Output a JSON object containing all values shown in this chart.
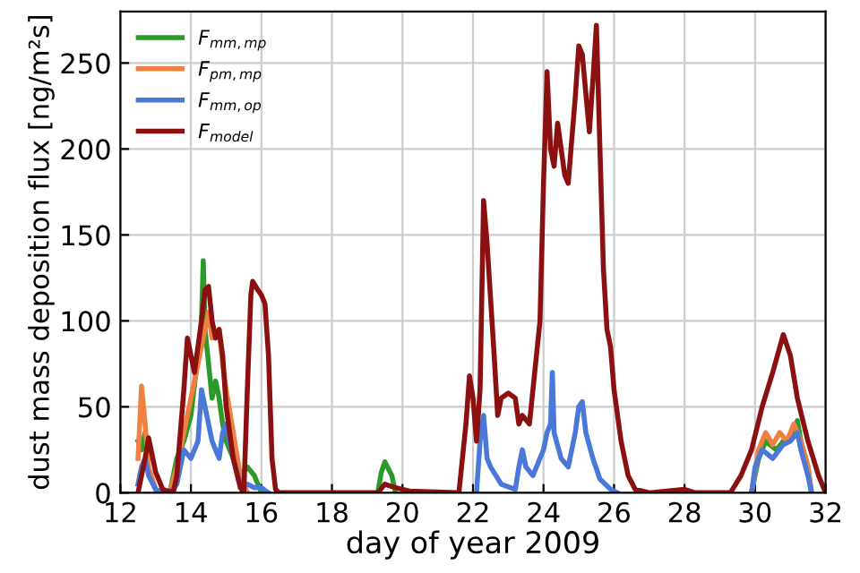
{
  "chart_data": {
    "type": "line",
    "xlabel": "day of year 2009",
    "ylabel": "dust mass deposition flux [ng/m²s]",
    "xlim": [
      12,
      32
    ],
    "ylim": [
      0,
      280
    ],
    "xticks": [
      12,
      14,
      16,
      18,
      20,
      22,
      24,
      26,
      28,
      30,
      32
    ],
    "yticks": [
      0,
      50,
      100,
      150,
      200,
      250
    ],
    "grid": true,
    "legend": "top left",
    "marker": "none",
    "line_style": "solid",
    "series": [
      {
        "name": "F$_{mm,mp}$",
        "color": "#2a9a2a",
        "x": [
          12.5,
          12.6,
          12.7,
          12.8,
          13.0,
          13.4,
          13.6,
          13.8,
          14.0,
          14.2,
          14.3,
          14.35,
          14.4,
          14.6,
          14.7,
          14.8,
          14.9,
          15.0,
          15.2,
          15.4,
          15.6,
          15.8,
          16.0,
          17.0,
          19.3,
          19.4,
          19.5,
          19.7,
          19.8,
          25.0,
          29.9,
          30.1,
          30.3,
          30.6,
          30.8,
          31.0,
          31.2,
          31.3,
          31.5,
          31.6
        ],
        "values": [
          30,
          25,
          35,
          12,
          2,
          0,
          20,
          30,
          45,
          80,
          100,
          135,
          95,
          55,
          65,
          55,
          40,
          30,
          20,
          10,
          15,
          10,
          0,
          null,
          0,
          12,
          18,
          10,
          0,
          null,
          0,
          20,
          30,
          25,
          30,
          32,
          42,
          30,
          15,
          0
        ]
      },
      {
        "name": "F$_{pm,mp}$",
        "color": "#f08040",
        "x": [
          12.5,
          12.6,
          12.7,
          12.8,
          13.0,
          13.4,
          13.6,
          13.8,
          14.0,
          14.2,
          14.4,
          14.5,
          14.6,
          14.8,
          14.9,
          15.0,
          15.2,
          15.4,
          15.6,
          20.0,
          29.9,
          30.1,
          30.3,
          30.5,
          30.7,
          30.9,
          31.1,
          31.3,
          31.5,
          31.6
        ],
        "values": [
          20,
          62,
          40,
          15,
          2,
          0,
          15,
          35,
          55,
          75,
          95,
          105,
          90,
          95,
          75,
          60,
          35,
          10,
          0,
          null,
          0,
          25,
          35,
          28,
          35,
          30,
          40,
          30,
          15,
          0
        ]
      },
      {
        "name": "F$_{mm,op}$",
        "color": "#4a78d8",
        "x": [
          12.5,
          12.6,
          12.7,
          12.8,
          13.0,
          13.4,
          13.6,
          13.8,
          14.0,
          14.2,
          14.3,
          14.4,
          14.5,
          14.6,
          14.8,
          14.9,
          15.0,
          15.1,
          15.2,
          15.4,
          15.6,
          15.8,
          16.0,
          16.2,
          17.0,
          22.1,
          22.2,
          22.3,
          22.4,
          22.5,
          22.8,
          23.2,
          23.3,
          23.4,
          23.5,
          23.7,
          23.9,
          24.0,
          24.1,
          24.2,
          24.25,
          24.3,
          24.5,
          24.7,
          24.9,
          25.0,
          25.1,
          25.2,
          25.4,
          25.6,
          25.9,
          26.1,
          28.0,
          29.9,
          30.0,
          30.2,
          30.5,
          30.8,
          31.0,
          31.2,
          31.3,
          31.5,
          31.6
        ],
        "values": [
          5,
          15,
          20,
          10,
          2,
          0,
          5,
          25,
          20,
          30,
          60,
          50,
          40,
          30,
          20,
          35,
          40,
          30,
          20,
          5,
          5,
          3,
          3,
          0,
          null,
          0,
          30,
          45,
          20,
          15,
          5,
          2,
          15,
          25,
          15,
          10,
          20,
          25,
          35,
          40,
          70,
          35,
          20,
          15,
          35,
          50,
          53,
          35,
          20,
          8,
          2,
          0,
          null,
          0,
          15,
          25,
          20,
          28,
          30,
          35,
          25,
          10,
          0
        ]
      },
      {
        "name": "F$_{model}$",
        "color": "#8b1010",
        "x": [
          12.5,
          12.7,
          12.8,
          13.0,
          13.2,
          13.5,
          13.6,
          13.8,
          13.9,
          14.0,
          14.1,
          14.2,
          14.3,
          14.4,
          14.5,
          14.6,
          14.7,
          14.8,
          14.9,
          15.0,
          15.2,
          15.4,
          15.5,
          15.6,
          15.7,
          15.75,
          15.9,
          16.0,
          16.1,
          16.2,
          16.3,
          16.4,
          16.5,
          18.0,
          19.3,
          19.5,
          19.8,
          20.2,
          21.6,
          21.8,
          21.9,
          22.0,
          22.1,
          22.2,
          22.3,
          22.4,
          22.6,
          22.7,
          22.8,
          23.0,
          23.2,
          23.3,
          23.4,
          23.6,
          23.7,
          23.9,
          24.0,
          24.1,
          24.2,
          24.3,
          24.4,
          24.6,
          24.7,
          24.9,
          25.0,
          25.1,
          25.3,
          25.4,
          25.5,
          25.6,
          25.7,
          25.8,
          25.9,
          26.0,
          26.2,
          26.4,
          26.6,
          27.0,
          28.0,
          28.3,
          29.3,
          29.6,
          29.9,
          30.2,
          30.5,
          30.8,
          31.0,
          31.2,
          31.5,
          31.8,
          32.0
        ],
        "values": [
          0,
          20,
          32,
          12,
          2,
          0,
          10,
          60,
          90,
          80,
          70,
          85,
          100,
          118,
          120,
          100,
          90,
          95,
          80,
          50,
          20,
          3,
          0,
          60,
          115,
          123,
          118,
          115,
          110,
          80,
          20,
          2,
          0,
          0,
          0,
          5,
          3,
          1,
          0,
          40,
          68,
          55,
          30,
          60,
          170,
          145,
          80,
          45,
          55,
          58,
          55,
          40,
          45,
          40,
          60,
          100,
          180,
          245,
          200,
          190,
          215,
          185,
          180,
          230,
          260,
          255,
          210,
          240,
          272,
          200,
          130,
          95,
          85,
          60,
          30,
          10,
          2,
          0,
          2,
          0,
          0,
          10,
          25,
          50,
          70,
          92,
          80,
          55,
          30,
          10,
          0
        ]
      }
    ]
  }
}
